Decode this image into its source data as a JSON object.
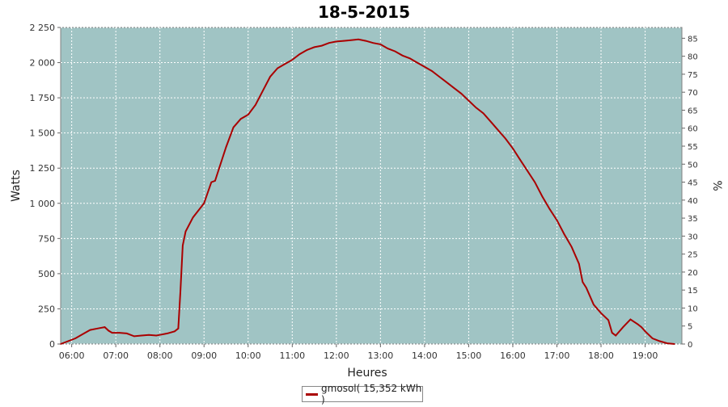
{
  "colors": {
    "plot_bg": "#a0c4c4",
    "series": "#aa0000",
    "grid": "#ffffff"
  },
  "chart_data": {
    "type": "line",
    "title": "18-5-2015",
    "xlabel": "Heures",
    "ylabel": "Watts",
    "y2label": "%",
    "xlim": [
      "05:45",
      "19:50"
    ],
    "ylim": [
      0,
      2250
    ],
    "y2lim": [
      0,
      88
    ],
    "x_ticks": [
      "06:00",
      "07:00",
      "08:00",
      "09:00",
      "10:00",
      "11:00",
      "12:00",
      "13:00",
      "14:00",
      "15:00",
      "16:00",
      "17:00",
      "18:00",
      "19:00"
    ],
    "y_ticks": [
      "0",
      "250",
      "500",
      "750",
      "1 000",
      "1 250",
      "1 500",
      "1 750",
      "2 000",
      "2 250"
    ],
    "y2_ticks": [
      "0",
      "5",
      "10",
      "15",
      "20",
      "25",
      "30",
      "35",
      "40",
      "45",
      "50",
      "55",
      "60",
      "65",
      "70",
      "75",
      "80",
      "85"
    ],
    "grid": true,
    "legend_position": "bottom",
    "series": [
      {
        "name": "gmosol( 15,352 kWh )",
        "x": [
          "05:45",
          "05:55",
          "06:05",
          "06:15",
          "06:25",
          "06:35",
          "06:45",
          "06:50",
          "06:55",
          "07:05",
          "07:15",
          "07:25",
          "07:35",
          "07:45",
          "07:55",
          "08:00",
          "08:10",
          "08:20",
          "08:25",
          "08:28",
          "08:31",
          "08:35",
          "08:45",
          "09:00",
          "09:10",
          "09:15",
          "09:20",
          "09:30",
          "09:40",
          "09:50",
          "10:00",
          "10:10",
          "10:20",
          "10:30",
          "10:40",
          "10:50",
          "11:00",
          "11:10",
          "11:20",
          "11:30",
          "11:40",
          "11:50",
          "12:00",
          "12:10",
          "12:20",
          "12:30",
          "12:40",
          "12:50",
          "13:00",
          "13:10",
          "13:20",
          "13:30",
          "13:40",
          "13:50",
          "14:00",
          "14:10",
          "14:20",
          "14:30",
          "14:40",
          "14:50",
          "15:00",
          "15:10",
          "15:20",
          "15:30",
          "15:40",
          "15:50",
          "16:00",
          "16:10",
          "16:20",
          "16:30",
          "16:40",
          "16:50",
          "17:00",
          "17:10",
          "17:20",
          "17:30",
          "17:35",
          "17:40",
          "17:50",
          "18:00",
          "18:10",
          "18:15",
          "18:20",
          "18:30",
          "18:40",
          "18:50",
          "18:55",
          "19:00",
          "19:10",
          "19:20",
          "19:30",
          "19:40"
        ],
        "values": [
          0,
          20,
          40,
          70,
          100,
          110,
          120,
          95,
          80,
          80,
          75,
          55,
          60,
          65,
          60,
          65,
          75,
          90,
          110,
          380,
          700,
          800,
          900,
          1000,
          1150,
          1160,
          1240,
          1400,
          1540,
          1600,
          1630,
          1700,
          1800,
          1900,
          1960,
          1990,
          2020,
          2060,
          2090,
          2110,
          2120,
          2140,
          2150,
          2155,
          2160,
          2165,
          2155,
          2140,
          2130,
          2100,
          2080,
          2050,
          2030,
          2000,
          1970,
          1940,
          1900,
          1860,
          1820,
          1780,
          1730,
          1680,
          1640,
          1580,
          1520,
          1460,
          1390,
          1310,
          1230,
          1150,
          1050,
          960,
          880,
          780,
          690,
          570,
          440,
          400,
          280,
          220,
          170,
          80,
          60,
          120,
          175,
          140,
          120,
          90,
          40,
          20,
          5,
          0
        ]
      }
    ]
  }
}
